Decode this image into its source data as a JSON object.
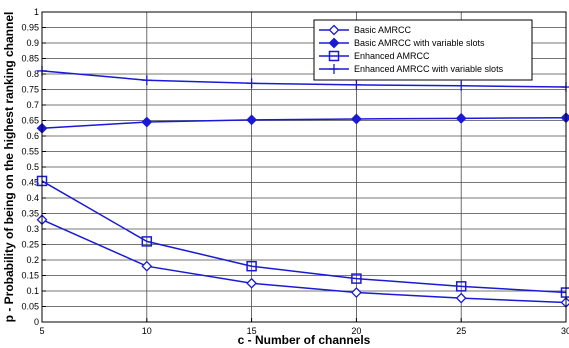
{
  "chart_data": {
    "type": "line",
    "title": "",
    "xlabel": "c - Number of channels",
    "ylabel": "p - Probability of being on the highest ranking channel",
    "x": [
      5,
      10,
      15,
      20,
      25,
      30
    ],
    "xlim": [
      5,
      30
    ],
    "ylim": [
      0,
      1
    ],
    "xticks": [
      "5",
      "10",
      "15",
      "20",
      "25",
      "30"
    ],
    "yticks": [
      "0",
      "0.05",
      "0.1",
      "0.15",
      "0.2",
      "0.25",
      "0.3",
      "0.35",
      "0.4",
      "0.45",
      "0.5",
      "0.55",
      "0.6",
      "0.65",
      "0.7",
      "0.75",
      "0.8",
      "0.85",
      "0.9",
      "0.95",
      "1"
    ],
    "grid": true,
    "legend_position": "top-right",
    "line_color": "#1a1ad6",
    "series": [
      {
        "name": "Basic AMRCC",
        "marker": "diamond-open",
        "values": [
          0.33,
          0.18,
          0.125,
          0.095,
          0.077,
          0.063
        ]
      },
      {
        "name": "Basic AMRCC with variable slots",
        "marker": "diamond-filled",
        "values": [
          0.625,
          0.645,
          0.652,
          0.655,
          0.657,
          0.659
        ]
      },
      {
        "name": "Enhanced AMRCC",
        "marker": "square-open",
        "values": [
          0.455,
          0.26,
          0.18,
          0.14,
          0.115,
          0.095
        ]
      },
      {
        "name": "Enhanced AMRCC with variable slots",
        "marker": "plus",
        "values": [
          0.81,
          0.78,
          0.77,
          0.765,
          0.762,
          0.758
        ]
      }
    ]
  }
}
